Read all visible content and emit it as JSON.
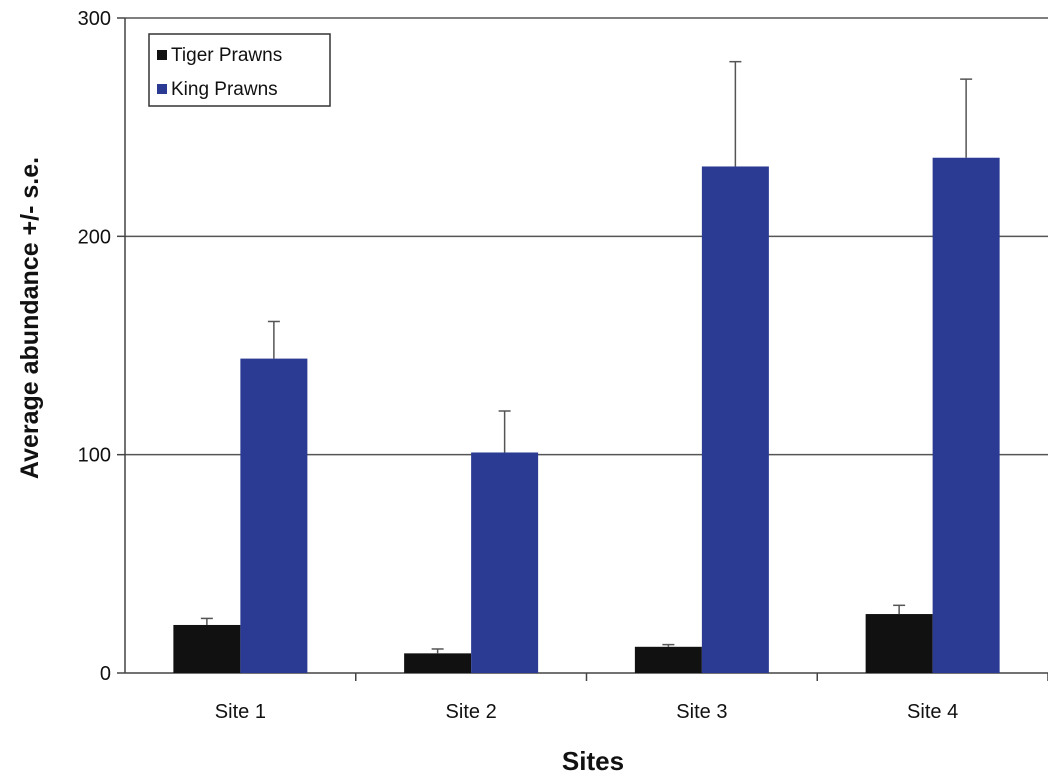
{
  "chart_data": {
    "type": "bar",
    "title": "",
    "xlabel": "Sites",
    "ylabel": "Average abundance +/- s.e.",
    "categories": [
      "Site 1",
      "Site 2",
      "Site 3",
      "Site 4"
    ],
    "ylim": [
      0,
      300
    ],
    "yticks": [
      "0",
      "100",
      "200",
      "300"
    ],
    "grid": true,
    "legend_position": "top-left",
    "series": [
      {
        "name": "Tiger Prawns",
        "color": "#111111",
        "values": [
          22,
          9,
          12,
          27
        ],
        "errors": [
          3,
          2,
          1,
          4
        ]
      },
      {
        "name": "King Prawns",
        "color": "#2b3a93",
        "values": [
          144,
          101,
          232,
          236
        ],
        "errors": [
          17,
          19,
          48,
          36
        ]
      }
    ]
  }
}
